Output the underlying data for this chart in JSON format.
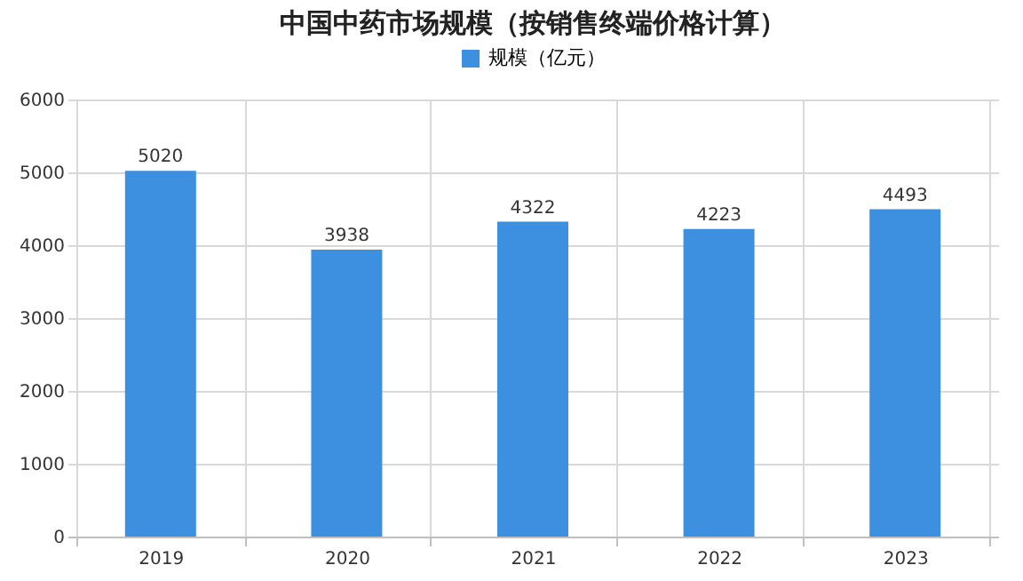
{
  "chart_data": {
    "type": "bar",
    "title": "中国中药市场规模（按销售终端价格计算）",
    "categories": [
      "2019",
      "2020",
      "2021",
      "2022",
      "2023"
    ],
    "series": [
      {
        "name": "规模（亿元）",
        "color": "#3d8fe0",
        "values": [
          5020,
          3938,
          4322,
          4223,
          4493
        ]
      }
    ],
    "ylim": [
      0,
      6000
    ],
    "yticks": [
      0,
      1000,
      2000,
      3000,
      4000,
      5000,
      6000
    ],
    "grid": true,
    "legend": "top",
    "data_labels": true
  }
}
